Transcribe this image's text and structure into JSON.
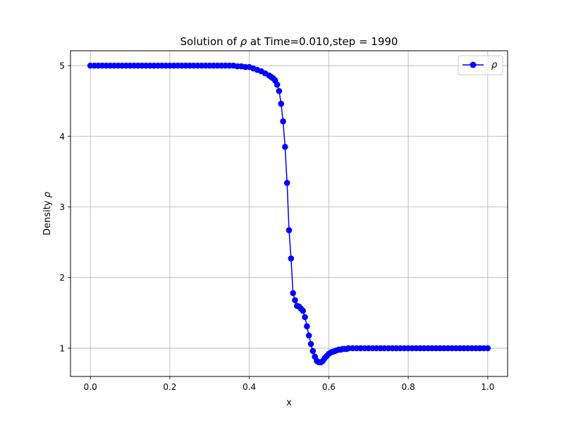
{
  "chart_data": {
    "type": "line",
    "title_prefix": "Solution of ",
    "title_symbol": "ρ",
    "title_suffix": " at Time=0.010,step = 1990",
    "xlabel": "x",
    "ylabel_prefix": "Density ",
    "ylabel_symbol": "ρ",
    "xlim": [
      -0.05,
      1.05
    ],
    "ylim": [
      0.6,
      5.21
    ],
    "xticks": [
      0.0,
      0.2,
      0.4,
      0.6,
      0.8,
      1.0
    ],
    "xtick_labels": [
      "0.0",
      "0.2",
      "0.4",
      "0.6",
      "0.8",
      "1.0"
    ],
    "yticks": [
      1,
      2,
      3,
      4,
      5
    ],
    "ytick_labels": [
      "1",
      "2",
      "3",
      "4",
      "5"
    ],
    "grid": true,
    "legend": "upper right",
    "series": [
      {
        "name": "ρ",
        "color": "#0000ff",
        "marker": "circle",
        "x": [
          0.0,
          0.01,
          0.02,
          0.03,
          0.04,
          0.05,
          0.06,
          0.07,
          0.08,
          0.09,
          0.1,
          0.11,
          0.12,
          0.13,
          0.14,
          0.15,
          0.16,
          0.17,
          0.18,
          0.19,
          0.2,
          0.21,
          0.22,
          0.23,
          0.24,
          0.25,
          0.26,
          0.27,
          0.28,
          0.29,
          0.3,
          0.31,
          0.32,
          0.33,
          0.34,
          0.35,
          0.36,
          0.37,
          0.38,
          0.39,
          0.4,
          0.41,
          0.42,
          0.43,
          0.44,
          0.45,
          0.455,
          0.46,
          0.465,
          0.47,
          0.475,
          0.48,
          0.485,
          0.49,
          0.495,
          0.5,
          0.505,
          0.51,
          0.515,
          0.52,
          0.525,
          0.53,
          0.535,
          0.54,
          0.545,
          0.55,
          0.555,
          0.56,
          0.565,
          0.57,
          0.575,
          0.58,
          0.585,
          0.59,
          0.595,
          0.6,
          0.605,
          0.61,
          0.615,
          0.62,
          0.625,
          0.63,
          0.635,
          0.64,
          0.645,
          0.65,
          0.66,
          0.67,
          0.68,
          0.69,
          0.7,
          0.71,
          0.72,
          0.73,
          0.74,
          0.75,
          0.76,
          0.77,
          0.78,
          0.79,
          0.8,
          0.81,
          0.82,
          0.83,
          0.84,
          0.85,
          0.86,
          0.87,
          0.88,
          0.89,
          0.9,
          0.91,
          0.92,
          0.93,
          0.94,
          0.95,
          0.96,
          0.97,
          0.98,
          0.99,
          1.0
        ],
        "y": [
          5.0,
          5.0,
          5.0,
          5.0,
          5.0,
          5.0,
          5.0,
          5.0,
          5.0,
          5.0,
          5.0,
          5.0,
          5.0,
          5.0,
          5.0,
          5.0,
          5.0,
          5.0,
          5.0,
          5.0,
          5.0,
          5.0,
          5.0,
          5.0,
          5.0,
          5.0,
          5.0,
          5.0,
          5.0,
          5.0,
          5.0,
          5.0,
          5.0,
          5.0,
          5.0,
          5.0,
          5.0,
          4.99,
          4.99,
          4.98,
          4.98,
          4.96,
          4.94,
          4.92,
          4.89,
          4.86,
          4.84,
          4.82,
          4.79,
          4.73,
          4.64,
          4.46,
          4.21,
          3.85,
          3.34,
          2.67,
          2.27,
          1.78,
          1.68,
          1.6,
          1.59,
          1.56,
          1.53,
          1.44,
          1.31,
          1.18,
          1.06,
          0.96,
          0.88,
          0.82,
          0.8,
          0.8,
          0.82,
          0.86,
          0.89,
          0.92,
          0.94,
          0.95,
          0.96,
          0.97,
          0.98,
          0.98,
          0.99,
          0.99,
          0.99,
          1.0,
          1.0,
          1.0,
          1.0,
          1.0,
          1.0,
          1.0,
          1.0,
          1.0,
          1.0,
          1.0,
          1.0,
          1.0,
          1.0,
          1.0,
          1.0,
          1.0,
          1.0,
          1.0,
          1.0,
          1.0,
          1.0,
          1.0,
          1.0,
          1.0,
          1.0,
          1.0,
          1.0,
          1.0,
          1.0,
          1.0,
          1.0,
          1.0,
          1.0,
          1.0,
          1.0
        ]
      }
    ]
  }
}
